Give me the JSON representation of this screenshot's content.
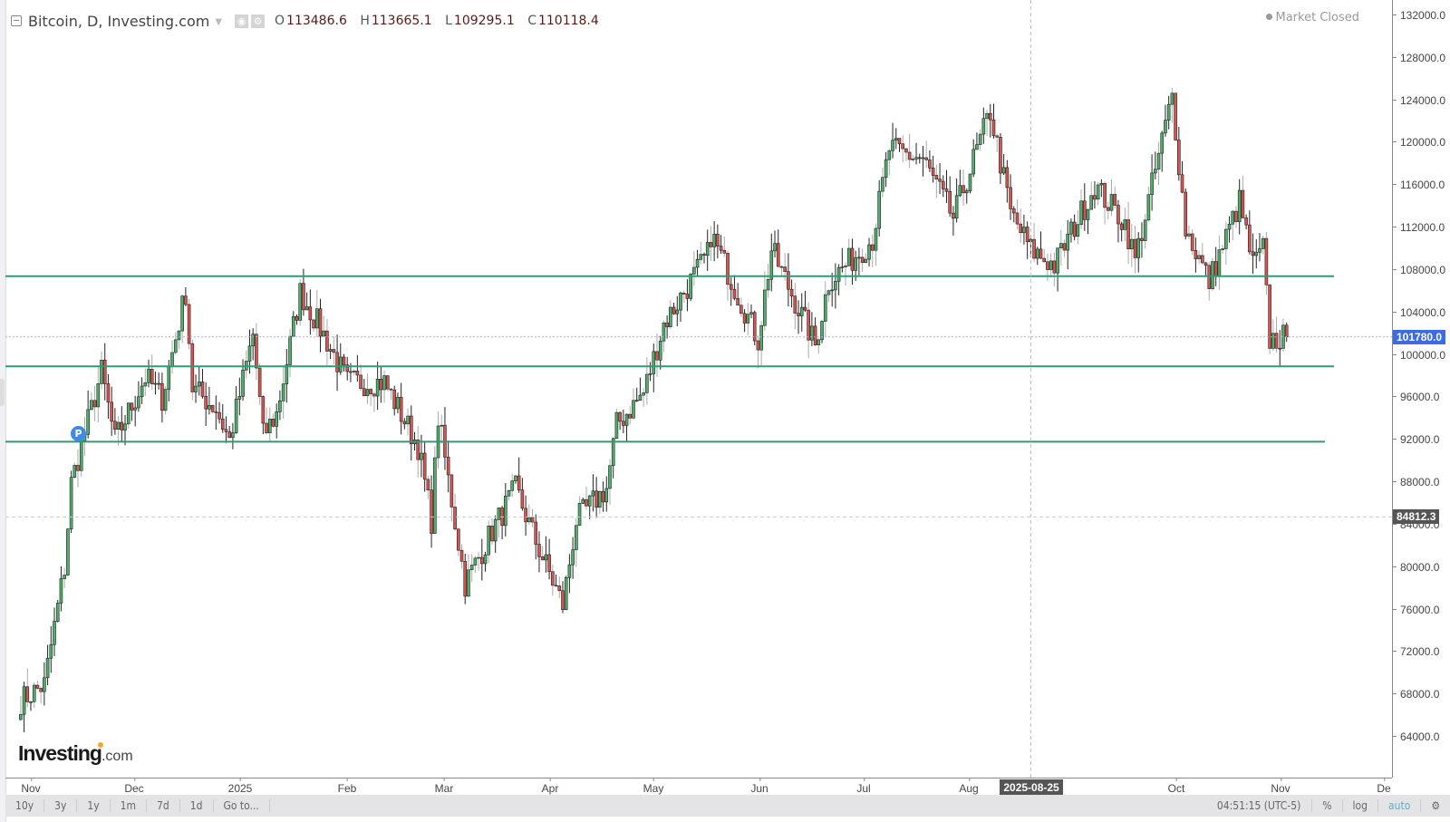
{
  "legend": {
    "title": "Bitcoin, D, Investing.com",
    "open_key": "O",
    "open": "113486.6",
    "high_key": "H",
    "high": "113665.1",
    "low_key": "L",
    "low": "109295.1",
    "close_key": "C",
    "close": "110118.4"
  },
  "status": {
    "label": "Market Closed"
  },
  "logo": {
    "brand": "Investing",
    "suffix": ".com"
  },
  "marker": {
    "label": "P"
  },
  "crosshair": {
    "date": "2025-08-25",
    "price": "84812.3"
  },
  "last_price": "101780.0",
  "toolbar": {
    "ranges": [
      "10y",
      "3y",
      "1y",
      "1m",
      "7d",
      "1d",
      "Go to..."
    ],
    "time": "04:51:15 (UTC-5)",
    "percent": "%",
    "log": "log",
    "auto": "auto"
  },
  "colors": {
    "up": "#4caf6a",
    "down": "#d9534f",
    "support_line": "#2e9a78",
    "last_price_badge": "#3d6be0",
    "crosshair_badge": "#555555"
  },
  "chart_data": {
    "type": "candlestick",
    "title": "Bitcoin, D, Investing.com",
    "xlabel": "",
    "ylabel": "",
    "ylim": [
      62000,
      133000
    ],
    "y_ticks": [
      "132000.0",
      "128000.0",
      "124000.0",
      "120000.0",
      "116000.0",
      "112000.0",
      "108000.0",
      "104000.0",
      "100000.0",
      "96000.0",
      "92000.0",
      "88000.0",
      "84000.0",
      "80000.0",
      "76000.0",
      "72000.0",
      "68000.0",
      "64000.0"
    ],
    "x_ticks": [
      "Nov",
      "Dec",
      "2025",
      "Feb",
      "Mar",
      "Apr",
      "May",
      "Jun",
      "Jul",
      "Aug",
      "Oct",
      "Nov",
      "De"
    ],
    "horizontal_lines": [
      107500,
      99000,
      91900
    ],
    "last_price": 101780.0,
    "crosshair": {
      "date": "2025-08-25",
      "price": 84812.3
    },
    "waypoints_close": [
      [
        "2024-10-29",
        67500
      ],
      [
        "2024-11-05",
        69000
      ],
      [
        "2024-11-11",
        80000
      ],
      [
        "2024-11-13",
        88000
      ],
      [
        "2024-11-22",
        98500
      ],
      [
        "2024-11-26",
        92000
      ],
      [
        "2024-12-05",
        98000
      ],
      [
        "2024-12-10",
        96000
      ],
      [
        "2024-12-17",
        106000
      ],
      [
        "2024-12-19",
        97000
      ],
      [
        "2024-12-26",
        95000
      ],
      [
        "2024-12-30",
        92000
      ],
      [
        "2025-01-06",
        102000
      ],
      [
        "2025-01-09",
        92500
      ],
      [
        "2025-01-13",
        94500
      ],
      [
        "2025-01-20",
        106000
      ],
      [
        "2025-01-27",
        102000
      ],
      [
        "2025-02-03",
        97500
      ],
      [
        "2025-02-14",
        97500
      ],
      [
        "2025-02-24",
        91500
      ],
      [
        "2025-02-28",
        84500
      ],
      [
        "2025-03-02",
        94200
      ],
      [
        "2025-03-10",
        78500
      ],
      [
        "2025-03-18",
        83500
      ],
      [
        "2025-03-25",
        87500
      ],
      [
        "2025-03-31",
        82500
      ],
      [
        "2025-04-08",
        76500
      ],
      [
        "2025-04-12",
        84500
      ],
      [
        "2025-04-21",
        87500
      ],
      [
        "2025-04-24",
        93500
      ],
      [
        "2025-05-02",
        96500
      ],
      [
        "2025-05-08",
        103000
      ],
      [
        "2025-05-21",
        109500
      ],
      [
        "2025-05-22",
        111500
      ],
      [
        "2025-06-05",
        101500
      ],
      [
        "2025-06-09",
        110000
      ],
      [
        "2025-06-22",
        101000
      ],
      [
        "2025-06-26",
        107000
      ],
      [
        "2025-07-09",
        111000
      ],
      [
        "2025-07-14",
        119500
      ],
      [
        "2025-07-24",
        118500
      ],
      [
        "2025-08-02",
        113000
      ],
      [
        "2025-08-13",
        123000
      ],
      [
        "2025-08-19",
        113500
      ],
      [
        "2025-08-25",
        110000
      ],
      [
        "2025-09-01",
        108500
      ],
      [
        "2025-09-13",
        116000
      ],
      [
        "2025-09-22",
        112500
      ],
      [
        "2025-09-25",
        109000
      ],
      [
        "2025-10-06",
        124500
      ],
      [
        "2025-10-10",
        112000
      ],
      [
        "2025-10-17",
        107000
      ],
      [
        "2025-10-26",
        114500
      ],
      [
        "2025-10-30",
        108500
      ],
      [
        "2025-11-02",
        110000
      ],
      [
        "2025-11-04",
        101500
      ],
      [
        "2025-11-09",
        101780
      ]
    ]
  }
}
